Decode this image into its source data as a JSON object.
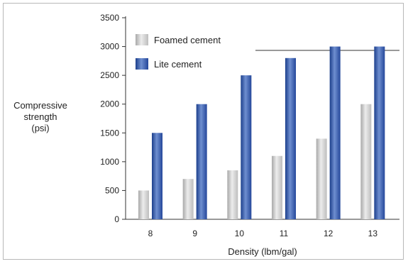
{
  "chart_data": {
    "type": "bar",
    "title": "",
    "xlabel": "Density (lbm/gal)",
    "ylabel_lines": [
      "Compressive",
      "strength",
      "(psi)"
    ],
    "categories": [
      "8",
      "9",
      "10",
      "11",
      "12",
      "13"
    ],
    "ylim": [
      0,
      3500
    ],
    "yticks": [
      "0",
      "500",
      "1000",
      "1500",
      "2000",
      "2500",
      "3000",
      "3500"
    ],
    "grid": false,
    "legend_position": "top-left",
    "series": [
      {
        "name": "Foamed cement",
        "values": [
          500,
          700,
          850,
          1100,
          1400,
          2000
        ],
        "color": "#c8c8c8"
      },
      {
        "name": "Lite cement",
        "values": [
          1500,
          2000,
          2500,
          2800,
          3000,
          3000
        ],
        "color": "#2e54a6"
      }
    ]
  }
}
